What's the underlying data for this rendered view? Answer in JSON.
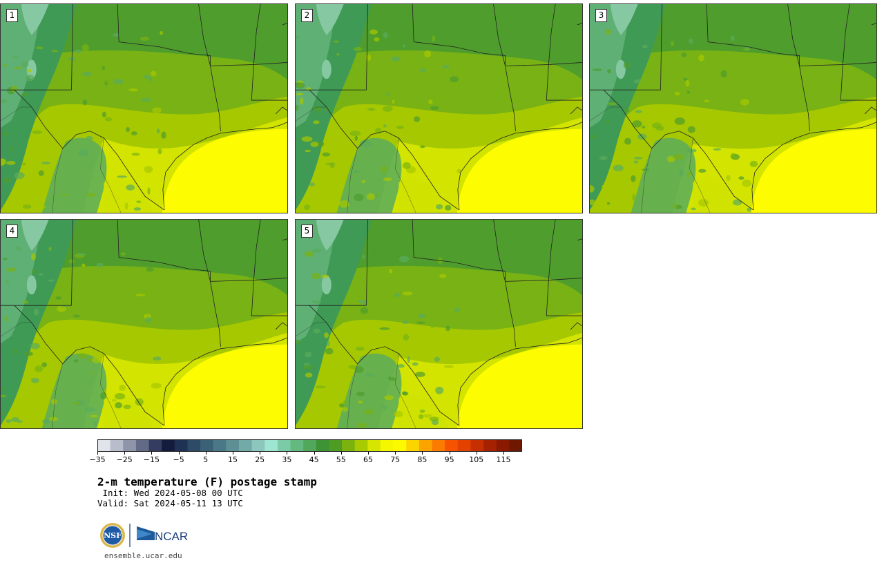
{
  "panels": [
    {
      "label": "1"
    },
    {
      "label": "2"
    },
    {
      "label": "3"
    },
    {
      "label": "4"
    },
    {
      "label": "5"
    }
  ],
  "colorbar": {
    "colors": [
      "#e1e4ea",
      "#b8bccb",
      "#8e94a9",
      "#626a86",
      "#343d5f",
      "#131c3d",
      "#1f3255",
      "#2d4a67",
      "#3b6177",
      "#4b7886",
      "#5c9094",
      "#71aaa7",
      "#8cc6bc",
      "#9fe6d2",
      "#7bcca6",
      "#63b980",
      "#51a85d",
      "#3e9334",
      "#4f9c24",
      "#7cb20d",
      "#a7cb00",
      "#d6e600",
      "#f4f700",
      "#fdfa00",
      "#fcd400",
      "#fba400",
      "#fb7a00",
      "#f65200",
      "#e34100",
      "#c63000",
      "#a62100",
      "#8a1900",
      "#6f1800"
    ],
    "ticks": [
      "−35",
      "−25",
      "−15",
      "−5",
      "5",
      "15",
      "25",
      "35",
      "45",
      "55",
      "65",
      "75",
      "85",
      "95",
      "105",
      "115"
    ]
  },
  "title": "2-m temperature (F) postage stamp",
  "init": " Init: Wed 2024-05-08 00 UTC",
  "valid": "Valid: Sat 2024-05-11 13 UTC",
  "logos": {
    "nsf": "NSF",
    "ncar": "NCAR"
  },
  "url": "ensemble.ucar.edu"
}
